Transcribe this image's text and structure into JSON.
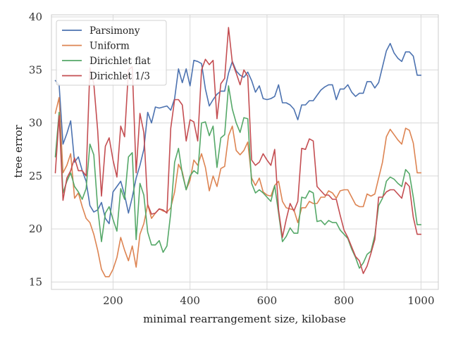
{
  "chart_data": {
    "type": "line",
    "title": "",
    "xlabel": "minimal rearrangement size, kilobase",
    "ylabel": "tree error",
    "xlim": [
      40,
      1045
    ],
    "ylim": [
      14.3,
      40.2
    ],
    "xticks": [
      200,
      400,
      600,
      800,
      1000
    ],
    "yticks": [
      15,
      20,
      25,
      30,
      35,
      40
    ],
    "grid": true,
    "legend_position": "top-left",
    "x": [
      50,
      60,
      70,
      80,
      90,
      100,
      110,
      120,
      130,
      140,
      150,
      160,
      170,
      180,
      190,
      200,
      210,
      220,
      230,
      240,
      250,
      260,
      270,
      280,
      290,
      300,
      310,
      320,
      330,
      340,
      350,
      360,
      370,
      380,
      390,
      400,
      410,
      420,
      430,
      440,
      450,
      460,
      470,
      480,
      490,
      500,
      510,
      520,
      530,
      540,
      550,
      560,
      570,
      580,
      590,
      600,
      610,
      620,
      630,
      640,
      650,
      660,
      670,
      680,
      690,
      700,
      710,
      720,
      730,
      740,
      750,
      760,
      770,
      780,
      790,
      800,
      810,
      820,
      830,
      840,
      850,
      860,
      870,
      880,
      890,
      900,
      910,
      920,
      930,
      940,
      950,
      960,
      970,
      980,
      990,
      1000
    ],
    "series": [
      {
        "name": "Parsimony",
        "color": "#4c72b0",
        "values": [
          34.0,
          33.6,
          28.0,
          29.0,
          30.2,
          26.3,
          26.8,
          25.5,
          24.5,
          22.2,
          21.6,
          21.8,
          22.5,
          21.0,
          20.5,
          23.5,
          24.0,
          24.5,
          23.2,
          21.5,
          23.0,
          24.8,
          26.0,
          27.5,
          31.0,
          30.0,
          31.5,
          31.4,
          31.5,
          31.6,
          31.2,
          32.3,
          35.1,
          33.8,
          35.1,
          33.5,
          35.9,
          35.8,
          35.6,
          33.2,
          31.6,
          32.2,
          32.7,
          33.0,
          33.0,
          34.7,
          35.8,
          34.9,
          34.5,
          34.3,
          34.8,
          34.0,
          32.9,
          33.5,
          32.3,
          32.2,
          32.3,
          32.5,
          33.6,
          31.9,
          31.9,
          31.7,
          31.3,
          30.3,
          31.7,
          31.7,
          32.1,
          32.1,
          32.6,
          33.1,
          33.4,
          33.6,
          33.6,
          32.2,
          33.2,
          33.2,
          33.6,
          32.9,
          32.5,
          32.8,
          32.8,
          33.9,
          33.9,
          33.3,
          33.8,
          35.3,
          36.8,
          37.5,
          36.6,
          36.1,
          35.8,
          36.7,
          36.7,
          36.3,
          34.5,
          34.5
        ]
      },
      {
        "name": "Uniform",
        "color": "#dd8452",
        "values": [
          30.9,
          32.4,
          25.3,
          26.0,
          27.1,
          22.9,
          23.4,
          22.1,
          21.0,
          20.6,
          19.5,
          18.0,
          16.2,
          15.5,
          15.5,
          16.2,
          17.3,
          19.2,
          18.0,
          17.0,
          18.4,
          16.4,
          19.5,
          20.5,
          22.3,
          21.0,
          21.5,
          21.9,
          21.7,
          21.6,
          22.0,
          23.5,
          26.1,
          25.4,
          23.7,
          24.6,
          26.5,
          26.0,
          27.1,
          25.8,
          23.6,
          25.0,
          24.0,
          25.7,
          25.9,
          28.8,
          29.7,
          27.4,
          27.0,
          27.4,
          28.2,
          24.8,
          24.1,
          24.8,
          23.5,
          23.2,
          23.1,
          24.1,
          24.5,
          22.6,
          22.0,
          21.9,
          21.8,
          20.6,
          22.0,
          22.0,
          22.6,
          22.4,
          22.4,
          23.0,
          23.0,
          23.6,
          23.4,
          22.9,
          23.6,
          23.7,
          23.7,
          23.0,
          22.3,
          22.1,
          22.1,
          23.3,
          23.1,
          23.3,
          24.8,
          26.3,
          28.7,
          29.4,
          28.9,
          28.4,
          28.0,
          29.5,
          29.3,
          28.1,
          25.3,
          25.3
        ]
      },
      {
        "name": "Dirichlet flat",
        "color": "#55a868",
        "values": [
          26.8,
          31.0,
          23.4,
          24.5,
          25.3,
          24.0,
          23.5,
          22.8,
          23.8,
          28.0,
          27.0,
          22.0,
          18.8,
          21.5,
          22.1,
          20.9,
          19.8,
          23.8,
          22.8,
          26.8,
          27.2,
          19.0,
          24.3,
          23.2,
          19.7,
          18.5,
          18.5,
          18.9,
          17.8,
          18.4,
          21.5,
          26.3,
          27.6,
          25.2,
          23.7,
          25.0,
          25.5,
          25.2,
          30.0,
          30.1,
          28.8,
          29.7,
          25.8,
          28.6,
          28.9,
          33.5,
          31.3,
          30.0,
          29.1,
          30.5,
          30.4,
          24.3,
          23.4,
          23.7,
          23.4,
          23.0,
          22.6,
          24.1,
          21.5,
          18.8,
          19.3,
          20.1,
          19.6,
          19.6,
          23.0,
          22.9,
          23.6,
          23.4,
          20.7,
          20.8,
          20.4,
          20.8,
          20.6,
          20.6,
          19.9,
          19.5,
          19.1,
          18.1,
          17.3,
          16.3,
          16.8,
          17.6,
          17.9,
          19.4,
          22.2,
          22.9,
          24.5,
          24.9,
          24.7,
          24.3,
          24.0,
          25.6,
          25.2,
          23.0,
          20.4,
          20.4
        ]
      },
      {
        "name": "Dirichlet 1/3",
        "color": "#c44e52",
        "values": [
          25.3,
          30.7,
          22.7,
          24.8,
          25.5,
          26.7,
          25.5,
          25.5,
          25.0,
          35.2,
          33.7,
          29.3,
          23.1,
          27.8,
          28.6,
          26.5,
          24.9,
          29.7,
          28.7,
          35.0,
          35.3,
          25.3,
          30.9,
          29.1,
          22.3,
          21.4,
          21.5,
          21.9,
          21.8,
          21.5,
          29.5,
          32.2,
          32.2,
          31.7,
          28.3,
          30.3,
          30.1,
          28.3,
          35.0,
          36.0,
          35.5,
          35.9,
          30.4,
          33.7,
          34.2,
          39.0,
          35.7,
          34.7,
          33.6,
          35.0,
          34.4,
          26.5,
          26.0,
          26.3,
          27.1,
          26.5,
          26.0,
          27.5,
          21.8,
          19.2,
          20.9,
          22.4,
          21.7,
          22.6,
          27.6,
          27.5,
          28.5,
          28.3,
          24.0,
          23.6,
          23.2,
          23.2,
          22.8,
          22.8,
          21.3,
          19.9,
          19.2,
          18.3,
          17.4,
          17.0,
          15.8,
          16.5,
          17.7,
          19.0,
          23.0,
          23.0,
          23.5,
          23.7,
          23.7,
          23.3,
          22.9,
          24.4,
          24.0,
          21.1,
          19.5,
          19.5
        ]
      }
    ]
  }
}
